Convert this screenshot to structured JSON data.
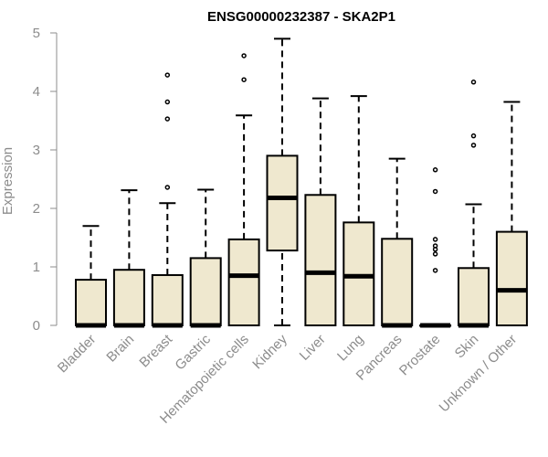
{
  "colors": {
    "box_fill": "#efe8cf",
    "box_stroke": "#000000",
    "axis": "#8c8c8c"
  },
  "chart_data": {
    "type": "boxplot",
    "title": "ENSG00000232387 - SKA2P1",
    "xlabel": "",
    "ylabel": "Expression",
    "ylim": [
      0,
      5
    ],
    "yticks": [
      "0",
      "1",
      "2",
      "3",
      "4",
      "5"
    ],
    "grid": false,
    "categories": [
      "Bladder",
      "Brain",
      "Breast",
      "Gastric",
      "Hematopoietic cells",
      "Kidney",
      "Liver",
      "Lung",
      "Pancreas",
      "Prostate",
      "Skin",
      "Unknown / Other"
    ],
    "boxes": [
      {
        "min": 0,
        "q1": 0,
        "median": 0,
        "q3": 0.78,
        "max": 1.7,
        "outliers": []
      },
      {
        "min": 0,
        "q1": 0,
        "median": 0,
        "q3": 0.95,
        "max": 2.31,
        "outliers": []
      },
      {
        "min": 0,
        "q1": 0,
        "median": 0,
        "q3": 0.86,
        "max": 2.09,
        "outliers": [
          2.36,
          3.53,
          3.82,
          4.28
        ]
      },
      {
        "min": 0,
        "q1": 0,
        "median": 0,
        "q3": 1.15,
        "max": 2.32,
        "outliers": []
      },
      {
        "min": 0,
        "q1": 0,
        "median": 0.85,
        "q3": 1.47,
        "max": 3.59,
        "outliers": [
          4.2,
          4.61
        ]
      },
      {
        "min": 0,
        "q1": 1.28,
        "median": 2.18,
        "q3": 2.9,
        "max": 4.9,
        "outliers": []
      },
      {
        "min": 0,
        "q1": 0,
        "median": 0.9,
        "q3": 2.23,
        "max": 3.88,
        "outliers": []
      },
      {
        "min": 0,
        "q1": 0,
        "median": 0.84,
        "q3": 1.76,
        "max": 3.92,
        "outliers": []
      },
      {
        "min": 0,
        "q1": 0,
        "median": 0,
        "q3": 1.48,
        "max": 2.85,
        "outliers": []
      },
      {
        "min": 0,
        "q1": 0,
        "median": 0,
        "q3": 0,
        "max": 0,
        "outliers": [
          0.94,
          1.22,
          1.3,
          1.36,
          1.47,
          2.29,
          2.66
        ]
      },
      {
        "min": 0,
        "q1": 0,
        "median": 0,
        "q3": 0.98,
        "max": 2.07,
        "outliers": [
          3.08,
          3.24,
          4.16
        ]
      },
      {
        "min": 0,
        "q1": 0,
        "median": 0.6,
        "q3": 1.6,
        "max": 3.82,
        "outliers": []
      }
    ]
  }
}
